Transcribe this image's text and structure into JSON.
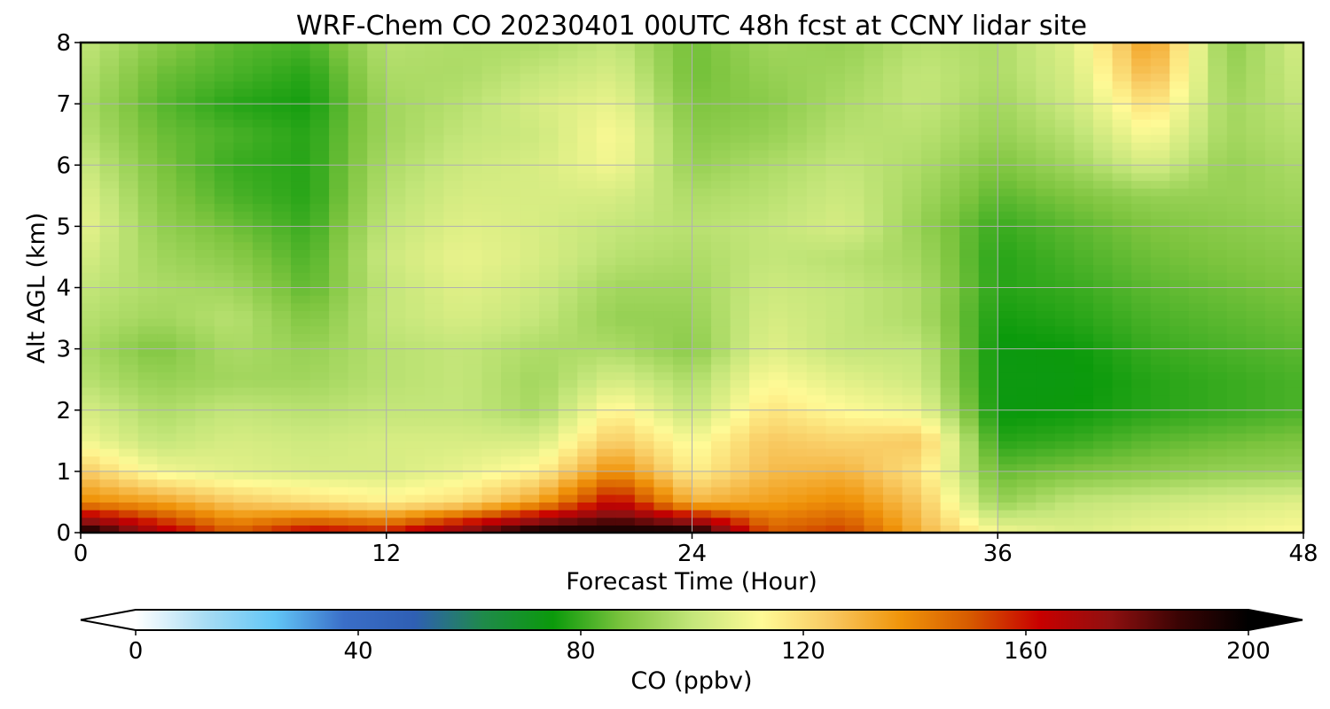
{
  "chart_data": {
    "type": "heatmap",
    "title": "WRF-Chem CO  20230401 00UTC 48h fcst at CCNY lidar site",
    "xlabel": "Forecast Time (Hour)",
    "ylabel": "Alt AGL (km)",
    "xlim": [
      0,
      48
    ],
    "ylim": [
      0,
      8
    ],
    "xticks": [
      "0",
      "12",
      "24",
      "36",
      "48"
    ],
    "yticks": [
      "0",
      "1",
      "2",
      "3",
      "4",
      "5",
      "6",
      "7",
      "8"
    ],
    "grid": true,
    "x": [
      0,
      3,
      6,
      9,
      12,
      15,
      18,
      21,
      24,
      27,
      30,
      33,
      36,
      39,
      42,
      45,
      48
    ],
    "y": [
      0,
      0.5,
      1,
      1.5,
      2,
      2.5,
      3,
      3.5,
      4,
      4.5,
      5,
      5.5,
      6,
      6.5,
      7,
      7.5,
      8
    ],
    "z": [
      [
        200,
        170,
        150,
        165,
        160,
        180,
        200,
        198,
        200,
        150,
        155,
        130,
        110,
        105,
        108,
        110,
        112
      ],
      [
        140,
        135,
        125,
        120,
        115,
        120,
        135,
        165,
        130,
        135,
        140,
        125,
        92,
        100,
        102,
        104,
        106
      ],
      [
        125,
        110,
        106,
        104,
        104,
        108,
        115,
        140,
        115,
        128,
        130,
        118,
        85,
        88,
        90,
        92,
        93
      ],
      [
        110,
        100,
        104,
        102,
        104,
        104,
        104,
        125,
        110,
        125,
        122,
        125,
        78,
        80,
        84,
        86,
        88
      ],
      [
        104,
        96,
        100,
        98,
        100,
        100,
        95,
        115,
        100,
        118,
        112,
        108,
        74,
        75,
        78,
        80,
        82
      ],
      [
        98,
        92,
        94,
        94,
        98,
        100,
        94,
        104,
        96,
        112,
        106,
        102,
        74,
        74,
        78,
        80,
        82
      ],
      [
        96,
        88,
        96,
        92,
        98,
        100,
        96,
        96,
        90,
        106,
        100,
        100,
        74,
        75,
        80,
        82,
        84
      ],
      [
        98,
        94,
        98,
        88,
        100,
        104,
        100,
        92,
        92,
        104,
        100,
        96,
        76,
        78,
        82,
        84,
        86
      ],
      [
        100,
        96,
        94,
        84,
        100,
        106,
        102,
        94,
        94,
        102,
        100,
        96,
        78,
        80,
        84,
        86,
        88
      ],
      [
        104,
        94,
        90,
        82,
        102,
        108,
        104,
        98,
        96,
        100,
        98,
        94,
        78,
        82,
        86,
        88,
        90
      ],
      [
        108,
        92,
        86,
        80,
        100,
        106,
        104,
        100,
        98,
        100,
        104,
        92,
        80,
        84,
        88,
        90,
        92
      ],
      [
        106,
        90,
        82,
        78,
        98,
        104,
        104,
        104,
        96,
        98,
        102,
        94,
        84,
        88,
        92,
        92,
        94
      ],
      [
        102,
        88,
        80,
        78,
        96,
        102,
        104,
        110,
        92,
        96,
        100,
        96,
        88,
        94,
        104,
        92,
        96
      ],
      [
        98,
        86,
        82,
        78,
        94,
        100,
        102,
        112,
        90,
        92,
        98,
        98,
        92,
        98,
        112,
        94,
        98
      ],
      [
        96,
        84,
        78,
        76,
        94,
        98,
        104,
        108,
        88,
        90,
        96,
        100,
        94,
        102,
        120,
        94,
        100
      ],
      [
        98,
        86,
        82,
        78,
        96,
        96,
        100,
        104,
        86,
        92,
        94,
        100,
        96,
        104,
        130,
        92,
        102
      ],
      [
        100,
        90,
        84,
        82,
        98,
        96,
        96,
        100,
        86,
        94,
        92,
        98,
        96,
        106,
        136,
        90,
        104
      ]
    ]
  },
  "colorbar": {
    "label": "CO  (ppbv)",
    "ticks": [
      "0",
      "40",
      "80",
      "120",
      "160",
      "200"
    ],
    "vmin": 0,
    "vmax": 200,
    "extend": "both",
    "colors": [
      "#ffffff",
      "#a8dcf4",
      "#62c6f6",
      "#3a6ec8",
      "#2f5fb4",
      "#1f8a4a",
      "#0b9a0b",
      "#7cc43e",
      "#c4e67a",
      "#fffa96",
      "#f8c860",
      "#f0940a",
      "#d65a00",
      "#c80000",
      "#901010",
      "#3a0404",
      "#000000"
    ]
  }
}
